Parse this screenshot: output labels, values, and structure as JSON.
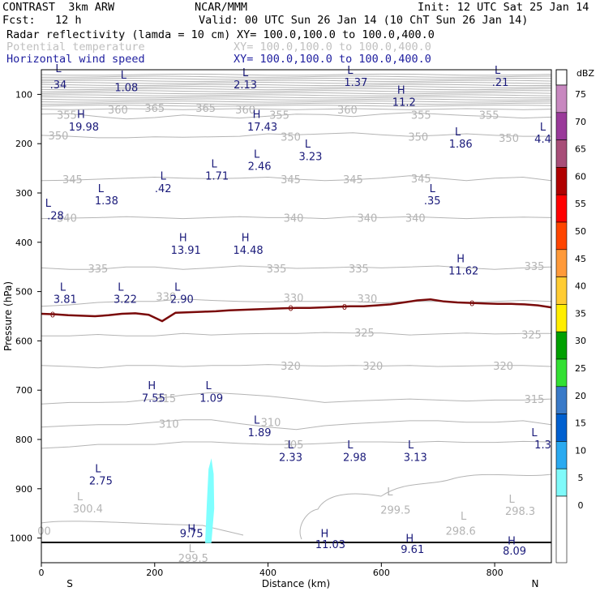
{
  "header": {
    "title": "CONTRAST  3km ARW",
    "org": "NCAR/MMM",
    "init": "Init: 12 UTC Sat 25 Jan 14",
    "fcst": "Fcst:   12 h",
    "valid": "Valid: 00 UTC Sun 26 Jan 14 (10 ChT Sun 26 Jan 14)",
    "field1": "Radar reflectivity (lamda = 10 cm)",
    "xy1": "XY= 100.0,100.0 to 100.0,400.0",
    "field2": "Potential temperature",
    "xy2": "XY= 100.0,100.0 to 100.0,400.0",
    "field3": "Horizontal wind speed",
    "xy3": "XY= 100.0,100.0 to 100.0,400.0"
  },
  "colors": {
    "theta": "#b4b4b4",
    "freezing": "#7a0a0a",
    "wind_labels": "#1a1a7a",
    "radar_core": "#7fffff"
  },
  "chart_data": {
    "type": "cross-section",
    "xlabel": "Distance (km)",
    "ylabel": "Pressure (hPa)",
    "xlim": [
      0,
      900
    ],
    "ylim": [
      1050,
      50
    ],
    "x_ticks": [
      0,
      200,
      400,
      600,
      800
    ],
    "y_ticks": [
      100,
      200,
      300,
      400,
      500,
      600,
      700,
      800,
      900,
      1000
    ],
    "left_label": "S",
    "right_label": "N",
    "colorbar": {
      "unit": "dBZ",
      "levels": [
        75,
        70,
        65,
        60,
        55,
        50,
        45,
        40,
        35,
        30,
        25,
        20,
        15,
        10,
        5,
        0
      ],
      "colors": [
        "#c888c0",
        "#9a3a9a",
        "#a84e78",
        "#b00000",
        "#ff0000",
        "#ff4500",
        "#ff9a3a",
        "#ffcc33",
        "#ffee00",
        "#00a000",
        "#33e033",
        "#3a7ac8",
        "#0060d0",
        "#2aaaf0",
        "#7ffafa",
        "#ffffff"
      ]
    },
    "theta_contours": [
      {
        "value": 360,
        "p": [
          130,
          131,
          130,
          129,
          130,
          131,
          130,
          129,
          130,
          131,
          130,
          129,
          130,
          131,
          130,
          129,
          130,
          131,
          130
        ]
      },
      {
        "value": 355,
        "p": [
          140,
          139,
          145,
          150,
          147,
          142,
          145,
          148,
          144,
          140,
          141,
          145,
          140,
          137,
          140,
          143,
          145,
          148,
          146
        ]
      },
      {
        "value": 350,
        "p": [
          183,
          185,
          188,
          188,
          186,
          187,
          186,
          185,
          180,
          182,
          180,
          178,
          182,
          185,
          183,
          180,
          183,
          185,
          185
        ]
      },
      {
        "value": 345,
        "p": [
          275,
          274,
          272,
          270,
          268,
          270,
          271,
          270,
          268,
          272,
          275,
          273,
          270,
          265,
          270,
          275,
          270,
          268,
          275
        ]
      },
      {
        "value": 340,
        "p": [
          352,
          351,
          350,
          348,
          350,
          352,
          350,
          348,
          350,
          350,
          352,
          348,
          350,
          348,
          350,
          352,
          350,
          349,
          350
        ]
      },
      {
        "value": 335,
        "p": [
          452,
          455,
          455,
          450,
          450,
          455,
          452,
          448,
          450,
          453,
          452,
          450,
          452,
          450,
          448,
          452,
          455,
          452,
          450
        ]
      },
      {
        "value": 330,
        "p": [
          530,
          527,
          522,
          520,
          520,
          515,
          518,
          520,
          521,
          520,
          520,
          520,
          523,
          520,
          520,
          522,
          520,
          518,
          520
        ]
      },
      {
        "value": 325,
        "p": [
          590,
          590,
          587,
          590,
          590,
          585,
          588,
          586,
          585,
          585,
          583,
          584,
          584,
          588,
          586,
          584,
          586,
          585,
          585
        ]
      },
      {
        "value": 320,
        "p": [
          650,
          652,
          655,
          650,
          650,
          652,
          650,
          650,
          648,
          650,
          651,
          650,
          651,
          650,
          652,
          651,
          650,
          650,
          652
        ]
      },
      {
        "value": 315,
        "p": [
          728,
          725,
          725,
          724,
          718,
          710,
          705,
          708,
          712,
          718,
          725,
          722,
          720,
          718,
          720,
          722,
          720,
          720,
          718
        ]
      },
      {
        "value": 310,
        "p": [
          775,
          772,
          770,
          770,
          765,
          760,
          760,
          768,
          775,
          780,
          772,
          768,
          765,
          762,
          762,
          765,
          765,
          762,
          770
        ]
      },
      {
        "value": 305,
        "p": [
          818,
          815,
          810,
          810,
          810,
          805,
          805,
          808,
          810,
          810,
          808,
          805,
          805,
          806,
          804,
          806,
          806,
          804,
          805
        ]
      }
    ],
    "freezing_level": {
      "label": "0",
      "p": [
        545,
        546,
        548,
        549,
        550,
        548,
        545,
        544,
        547,
        560,
        543,
        542,
        541,
        540,
        538,
        537,
        536,
        535,
        534,
        533,
        533,
        532,
        531,
        530,
        530,
        528,
        526,
        522,
        518,
        516,
        520,
        522,
        523,
        524,
        525,
        525,
        526,
        528,
        532
      ]
    },
    "wind_labels": [
      {
        "t": "L",
        "x": 30,
        "p": 47
      },
      {
        "t": ".34",
        "x": 30,
        "p": 80
      },
      {
        "t": "L",
        "x": 145,
        "p": 60
      },
      {
        "t": "1.08",
        "x": 150,
        "p": 85
      },
      {
        "t": "L",
        "x": 360,
        "p": 55
      },
      {
        "t": "2.13",
        "x": 360,
        "p": 80
      },
      {
        "t": "L",
        "x": 545,
        "p": 50
      },
      {
        "t": "1.37",
        "x": 555,
        "p": 75
      },
      {
        "t": "L",
        "x": 805,
        "p": 50
      },
      {
        "t": ".21",
        "x": 810,
        "p": 75
      },
      {
        "t": "H",
        "x": 635,
        "p": 90
      },
      {
        "t": "11.2",
        "x": 640,
        "p": 115
      },
      {
        "t": "H",
        "x": 70,
        "p": 140
      },
      {
        "t": "19.98",
        "x": 75,
        "p": 165
      },
      {
        "t": "H",
        "x": 380,
        "p": 140
      },
      {
        "t": "17.43",
        "x": 390,
        "p": 165
      },
      {
        "t": "L",
        "x": 735,
        "p": 175
      },
      {
        "t": "1.86",
        "x": 740,
        "p": 200
      },
      {
        "t": "L",
        "x": 885,
        "p": 165
      },
      {
        "t": "4.4",
        "x": 885,
        "p": 190
      },
      {
        "t": "L",
        "x": 470,
        "p": 200
      },
      {
        "t": "3.23",
        "x": 475,
        "p": 225
      },
      {
        "t": "L",
        "x": 380,
        "p": 220
      },
      {
        "t": "2.46",
        "x": 385,
        "p": 245
      },
      {
        "t": "L",
        "x": 215,
        "p": 265
      },
      {
        "t": "L",
        "x": 305,
        "p": 240
      },
      {
        "t": "1.71",
        "x": 310,
        "p": 265
      },
      {
        "t": ".42",
        "x": 215,
        "p": 290
      },
      {
        "t": "L",
        "x": 105,
        "p": 290
      },
      {
        "t": "1.38",
        "x": 115,
        "p": 315
      },
      {
        "t": "L",
        "x": 690,
        "p": 290
      },
      {
        "t": ".35",
        "x": 690,
        "p": 315
      },
      {
        "t": "L",
        "x": 12,
        "p": 320
      },
      {
        "t": ".28",
        "x": 25,
        "p": 345
      },
      {
        "t": "H",
        "x": 250,
        "p": 390
      },
      {
        "t": "13.91",
        "x": 255,
        "p": 415
      },
      {
        "t": "H",
        "x": 360,
        "p": 390
      },
      {
        "t": "14.48",
        "x": 365,
        "p": 415
      },
      {
        "t": "H",
        "x": 740,
        "p": 432
      },
      {
        "t": "11.62",
        "x": 745,
        "p": 457
      },
      {
        "t": "L",
        "x": 38,
        "p": 490
      },
      {
        "t": "3.81",
        "x": 42,
        "p": 515
      },
      {
        "t": "L",
        "x": 140,
        "p": 490
      },
      {
        "t": "3.22",
        "x": 148,
        "p": 515
      },
      {
        "t": "L",
        "x": 240,
        "p": 490
      },
      {
        "t": "2.90",
        "x": 248,
        "p": 515
      },
      {
        "t": "H",
        "x": 195,
        "p": 690
      },
      {
        "t": "7.55",
        "x": 198,
        "p": 715
      },
      {
        "t": "L",
        "x": 295,
        "p": 690
      },
      {
        "t": "1.09",
        "x": 300,
        "p": 715
      },
      {
        "t": "L",
        "x": 380,
        "p": 760
      },
      {
        "t": "1.89",
        "x": 385,
        "p": 785
      },
      {
        "t": "L",
        "x": 870,
        "p": 785
      },
      {
        "t": "1.3",
        "x": 885,
        "p": 810
      },
      {
        "t": "L",
        "x": 440,
        "p": 810
      },
      {
        "t": "2.33",
        "x": 440,
        "p": 835
      },
      {
        "t": "L",
        "x": 545,
        "p": 810
      },
      {
        "t": "2.98",
        "x": 553,
        "p": 835
      },
      {
        "t": "L",
        "x": 652,
        "p": 810
      },
      {
        "t": "3.13",
        "x": 660,
        "p": 835
      },
      {
        "t": "L",
        "x": 100,
        "p": 858
      },
      {
        "t": "2.75",
        "x": 105,
        "p": 883
      },
      {
        "t": "H",
        "x": 265,
        "p": 980
      },
      {
        "t": "9.75",
        "x": 265,
        "p": 990
      },
      {
        "t": "H",
        "x": 500,
        "p": 990
      },
      {
        "t": "11.03",
        "x": 510,
        "p": 1012
      },
      {
        "t": "H",
        "x": 650,
        "p": 1000
      },
      {
        "t": "9.61",
        "x": 655,
        "p": 1022
      },
      {
        "t": "H",
        "x": 830,
        "p": 1005
      },
      {
        "t": "8.09",
        "x": 835,
        "p": 1025
      }
    ],
    "theta_labels": [
      {
        "t": "355",
        "x": 45,
        "p": 141
      },
      {
        "t": "360",
        "x": 135,
        "p": 131
      },
      {
        "t": "365",
        "x": 200,
        "p": 127
      },
      {
        "t": "365",
        "x": 290,
        "p": 127
      },
      {
        "t": "360",
        "x": 360,
        "p": 131
      },
      {
        "t": "360",
        "x": 540,
        "p": 131
      },
      {
        "t": "355",
        "x": 420,
        "p": 141
      },
      {
        "t": "355",
        "x": 670,
        "p": 141
      },
      {
        "t": "355",
        "x": 790,
        "p": 141
      },
      {
        "t": "350",
        "x": 30,
        "p": 183
      },
      {
        "t": "350",
        "x": 440,
        "p": 186
      },
      {
        "t": "350",
        "x": 665,
        "p": 186
      },
      {
        "t": "350",
        "x": 825,
        "p": 188
      },
      {
        "t": "345",
        "x": 55,
        "p": 272
      },
      {
        "t": "345",
        "x": 440,
        "p": 272
      },
      {
        "t": "345",
        "x": 550,
        "p": 272
      },
      {
        "t": "345",
        "x": 670,
        "p": 270
      },
      {
        "t": "340",
        "x": 45,
        "p": 350
      },
      {
        "t": "340",
        "x": 445,
        "p": 350
      },
      {
        "t": "340",
        "x": 575,
        "p": 350
      },
      {
        "t": "340",
        "x": 660,
        "p": 350
      },
      {
        "t": "335",
        "x": 100,
        "p": 453
      },
      {
        "t": "335",
        "x": 415,
        "p": 453
      },
      {
        "t": "335",
        "x": 560,
        "p": 453
      },
      {
        "t": "335",
        "x": 870,
        "p": 448
      },
      {
        "t": "330",
        "x": 220,
        "p": 510
      },
      {
        "t": "330",
        "x": 445,
        "p": 512
      },
      {
        "t": "330",
        "x": 575,
        "p": 514
      },
      {
        "t": "325",
        "x": 570,
        "p": 583
      },
      {
        "t": "325",
        "x": 865,
        "p": 587
      },
      {
        "t": "320",
        "x": 440,
        "p": 650
      },
      {
        "t": "320",
        "x": 585,
        "p": 650
      },
      {
        "t": "320",
        "x": 815,
        "p": 650
      },
      {
        "t": "315",
        "x": 220,
        "p": 716
      },
      {
        "t": "315",
        "x": 870,
        "p": 718
      },
      {
        "t": "310",
        "x": 225,
        "p": 768
      },
      {
        "t": "310",
        "x": 405,
        "p": 765
      },
      {
        "t": "305",
        "x": 445,
        "p": 810
      },
      {
        "t": "L",
        "x": 68,
        "p": 915
      },
      {
        "t": "300.4",
        "x": 82,
        "p": 940
      },
      {
        "t": "L",
        "x": 615,
        "p": 905
      },
      {
        "t": "299.5",
        "x": 625,
        "p": 942
      },
      {
        "t": "L",
        "x": 830,
        "p": 920
      },
      {
        "t": "298.3",
        "x": 845,
        "p": 945
      },
      {
        "t": "L",
        "x": 745,
        "p": 955
      },
      {
        "t": "298.6",
        "x": 740,
        "p": 985
      },
      {
        "t": "L",
        "x": 265,
        "p": 1020
      },
      {
        "t": "299.5",
        "x": 268,
        "p": 1040
      },
      {
        "t": "00",
        "x": 5,
        "p": 985
      }
    ]
  }
}
